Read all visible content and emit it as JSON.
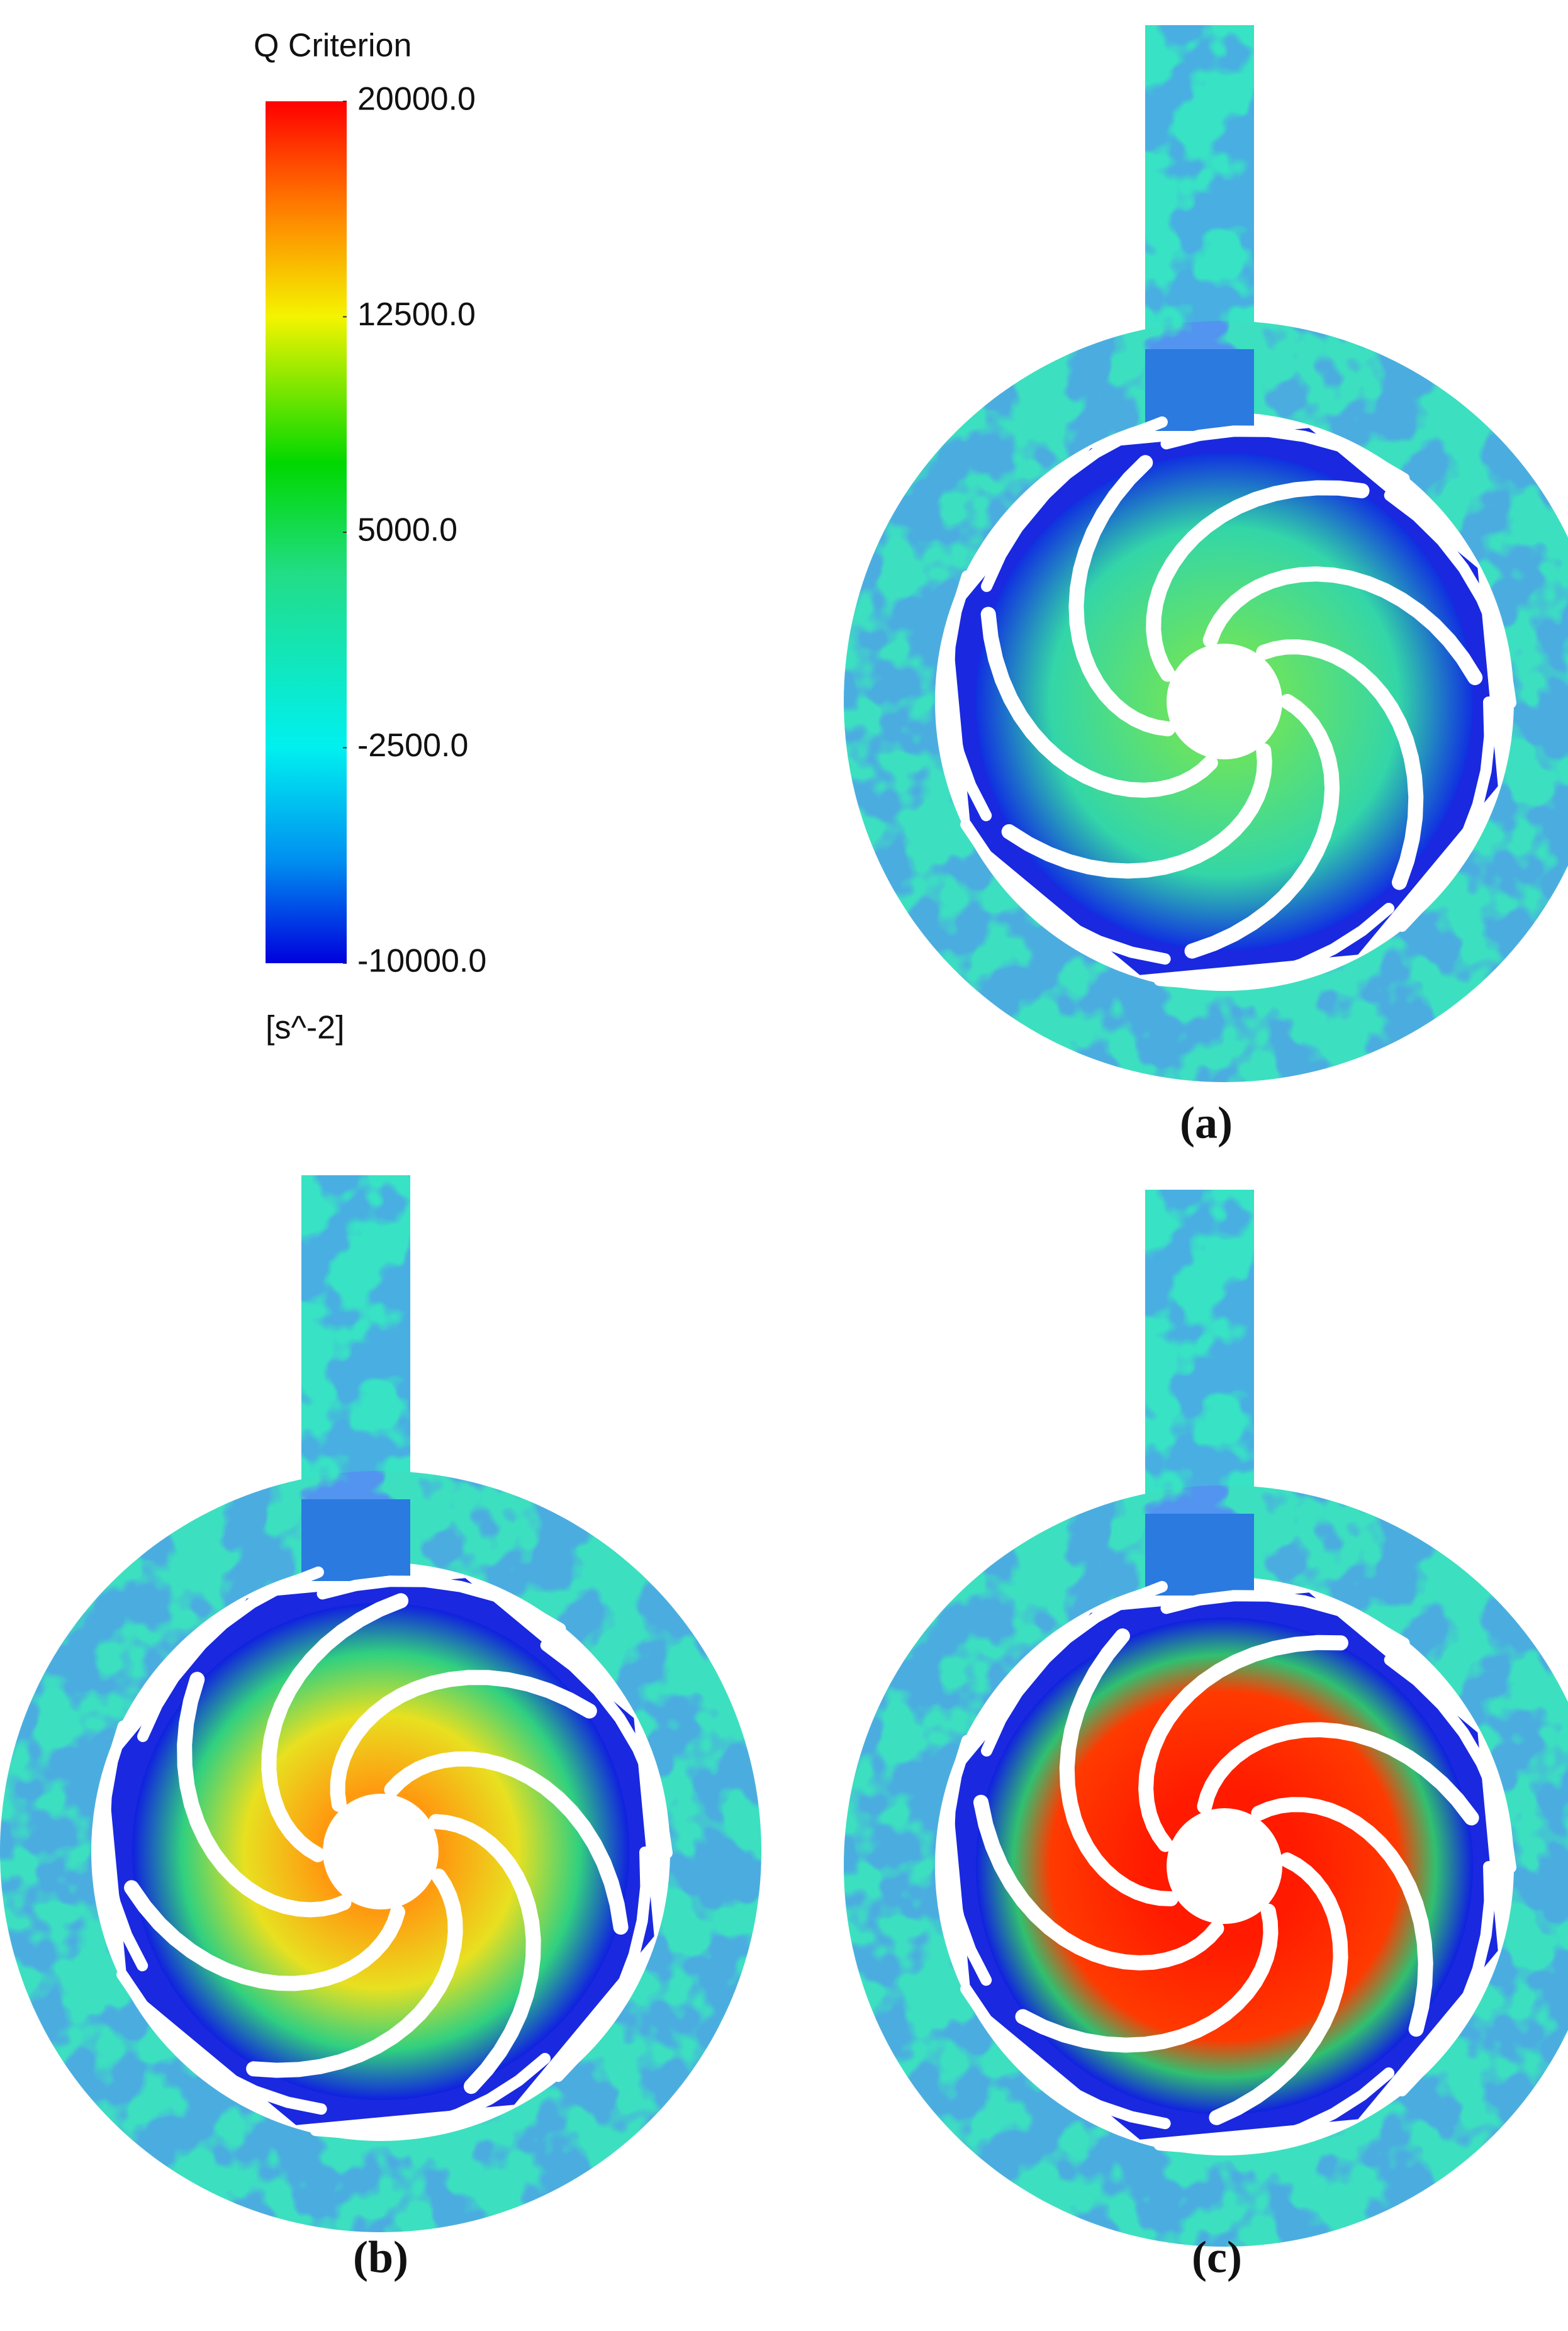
{
  "legend": {
    "title": "Q Criterion",
    "ticks": [
      {
        "value": 20000,
        "label": "20000.0"
      },
      {
        "value": 12500,
        "label": "12500.0"
      },
      {
        "value": 5000,
        "label": "5000.0"
      },
      {
        "value": -2500,
        "label": "-2500.0"
      },
      {
        "value": -10000,
        "label": "-10000.0"
      }
    ],
    "unit": "[s^-2]"
  },
  "panels": [
    {
      "label": "(a)"
    },
    {
      "label": "(b)"
    },
    {
      "label": "(c)"
    }
  ]
}
